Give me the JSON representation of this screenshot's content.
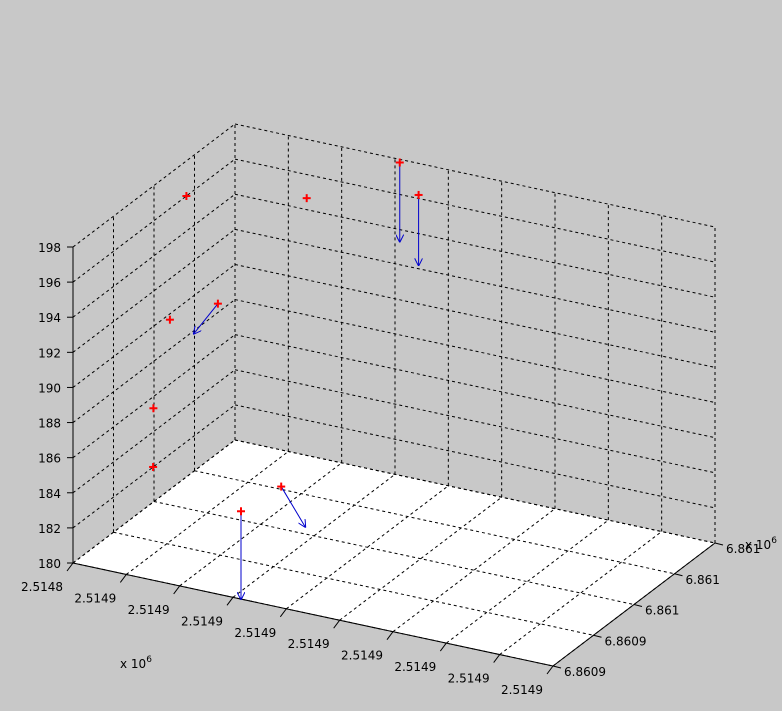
{
  "colors": {
    "background": "#c8c8c8",
    "marker": "#ff0000",
    "arrow": "#0000cc"
  },
  "chart_data": {
    "type": "3d-scatter-quiver",
    "title": "",
    "xlabel": "",
    "ylabel": "",
    "zlabel": "",
    "x_exponent": "x 10",
    "x_exponent_power": "6",
    "y_exponent": "x 10",
    "y_exponent_power": "6",
    "x_tick_labels": [
      "2.5148",
      "2.5149",
      "2.5149",
      "2.5149",
      "2.5149",
      "2.5149",
      "2.5149",
      "2.5149",
      "2.5149",
      "2.5149"
    ],
    "y_tick_labels": [
      "6.8609",
      "6.8609",
      "6.861",
      "6.861",
      "6.861"
    ],
    "z_tick_labels": [
      "180",
      "182",
      "184",
      "186",
      "188",
      "190",
      "192",
      "194",
      "196",
      "198"
    ],
    "zlim": [
      180,
      198
    ],
    "grid": true,
    "normalized_axes": "x, y normalized 0-1 over axis range",
    "points": [
      {
        "x": 0.0,
        "y": 0.7,
        "z": 196,
        "dx": 0,
        "dy": 0,
        "dz": 0
      },
      {
        "x": 0.2,
        "y": 0.85,
        "z": 196,
        "dx": 0,
        "dy": 0,
        "dz": 0
      },
      {
        "x": 0.35,
        "y": 0.98,
        "z": 198,
        "dx": 0,
        "dy": 0,
        "dz": -4.5
      },
      {
        "x": 0.05,
        "y": 0.45,
        "z": 191,
        "dx": 0,
        "dy": 0,
        "dz": 0
      },
      {
        "x": 0.15,
        "y": 0.45,
        "z": 192.5,
        "dx": -0.05,
        "dy": 0,
        "dz": -2
      },
      {
        "x": 0.1,
        "y": 0.2,
        "z": 188,
        "dx": 0,
        "dy": 0,
        "dz": 0
      },
      {
        "x": 0.15,
        "y": 0.05,
        "z": 186,
        "dx": 0,
        "dy": 0,
        "dz": 0
      },
      {
        "x": 0.4,
        "y": 0.1,
        "z": 186,
        "dx": 0.05,
        "dy": 0,
        "dz": -2
      },
      {
        "x": 0.35,
        "y": 0.0,
        "z": 185,
        "dx": 0,
        "dy": 0,
        "dz": -5
      },
      {
        "x": 0.45,
        "y": 0.8,
        "z": 198,
        "dx": 0,
        "dy": 0,
        "dz": -4
      }
    ]
  }
}
